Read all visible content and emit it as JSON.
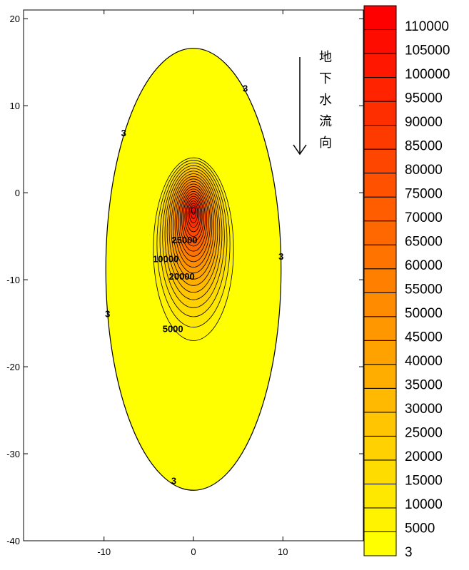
{
  "chart_data": {
    "type": "contour",
    "title": "",
    "xlabel": "",
    "ylabel": "",
    "xlim": [
      -19,
      19
    ],
    "ylim": [
      -40,
      21
    ],
    "x_ticks": [
      -10,
      0,
      10
    ],
    "y_ticks": [
      20,
      10,
      0,
      -10,
      -20,
      -30,
      -40
    ],
    "plume": {
      "center_x": 0,
      "outer_top_y": 16.6,
      "outer_bottom_y": -34.2,
      "outer_half_width": 9.8,
      "peak_y": -2.0,
      "peak_value": 110000
    },
    "contour_labels": [
      {
        "text": "3",
        "x": 5.8,
        "y": 11.6
      },
      {
        "text": "3",
        "x": -7.8,
        "y": 6.5
      },
      {
        "text": "3",
        "x": 9.8,
        "y": -7.7
      },
      {
        "text": "3",
        "x": -9.6,
        "y": -14.3
      },
      {
        "text": "3",
        "x": -2.2,
        "y": -33.5
      },
      {
        "text": "5000",
        "x": -2.3,
        "y": -16.0
      },
      {
        "text": "10000",
        "x": -3.1,
        "y": -8.0
      },
      {
        "text": "20000",
        "x": -1.3,
        "y": -10.0
      },
      {
        "text": "25000",
        "x": -1.0,
        "y": -5.8
      }
    ],
    "colorbar": {
      "levels": [
        3,
        5000,
        10000,
        15000,
        20000,
        25000,
        30000,
        35000,
        40000,
        45000,
        50000,
        55000,
        60000,
        65000,
        70000,
        75000,
        80000,
        85000,
        90000,
        95000,
        100000,
        105000,
        110000
      ],
      "labels": [
        "3",
        "5000",
        "10000",
        "15000",
        "20000",
        "25000",
        "30000",
        "35000",
        "40000",
        "45000",
        "50000",
        "55000",
        "60000",
        "65000",
        "70000",
        "75000",
        "80000",
        "85000",
        "90000",
        "95000",
        "100000",
        "105000",
        "110000"
      ],
      "min_color": "#FFFF00",
      "max_color": "#FF0000"
    },
    "annotation": {
      "text_chars": [
        "地",
        "下",
        "水",
        "流",
        "向"
      ],
      "arrow": "down-arrow"
    },
    "grid": false,
    "legend": "colorbar-right"
  }
}
